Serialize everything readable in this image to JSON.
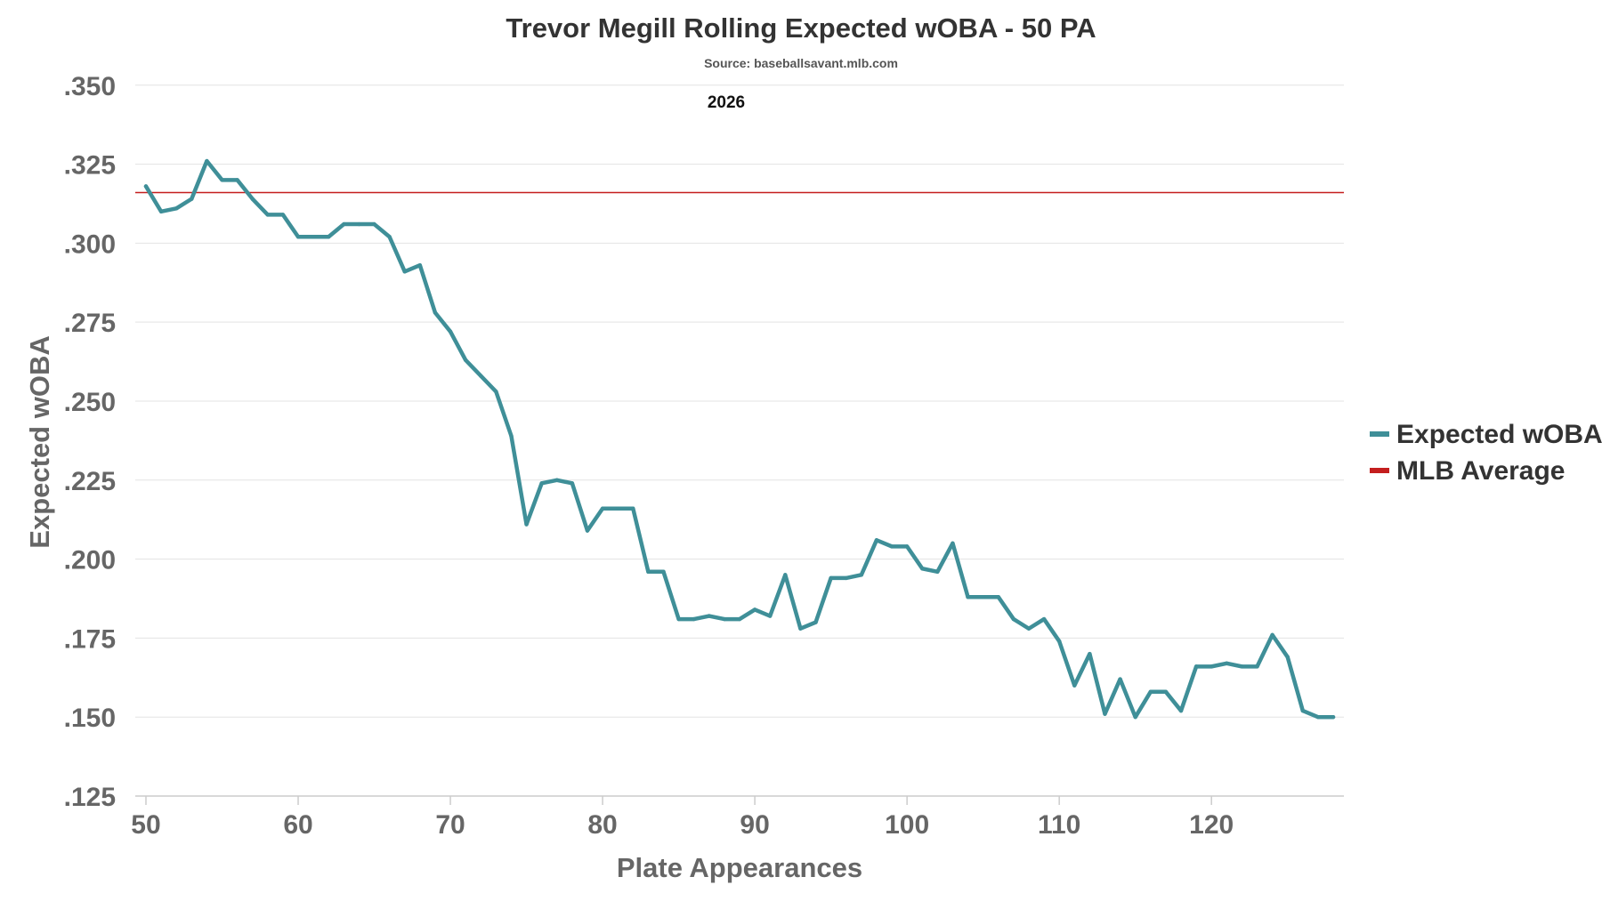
{
  "chart_data": {
    "type": "line",
    "title": "Trevor Megill Rolling Expected wOBA - 50 PA",
    "subtitle": "Source: baseballsavant.mlb.com",
    "annotation": "2026",
    "xlabel": "Plate Appearances",
    "ylabel": "Expected wOBA",
    "xlim": [
      49.3,
      128.7
    ],
    "ylim": [
      0.125,
      0.355
    ],
    "x_ticks": [
      50,
      60,
      70,
      80,
      90,
      100,
      110,
      120
    ],
    "y_ticks": [
      0.125,
      0.15,
      0.175,
      0.2,
      0.225,
      0.25,
      0.275,
      0.3,
      0.325,
      0.35
    ],
    "y_tick_labels": [
      ".125",
      ".150",
      ".175",
      ".200",
      ".225",
      ".250",
      ".275",
      ".300",
      ".325",
      ".350"
    ],
    "grid": true,
    "legend_position": "right",
    "series": [
      {
        "name": "Expected wOBA",
        "color": "#3f8f98",
        "x": [
          50,
          51,
          52,
          53,
          54,
          55,
          56,
          57,
          58,
          59,
          60,
          61,
          62,
          63,
          64,
          65,
          66,
          67,
          68,
          69,
          70,
          71,
          72,
          73,
          74,
          75,
          76,
          77,
          78,
          79,
          80,
          81,
          82,
          83,
          84,
          85,
          86,
          87,
          88,
          89,
          90,
          91,
          92,
          93,
          94,
          95,
          96,
          97,
          98,
          99,
          100,
          101,
          102,
          103,
          104,
          105,
          106,
          107,
          108,
          109,
          110,
          111,
          112,
          113,
          114,
          115,
          116,
          117,
          118,
          119,
          120,
          121,
          122,
          123,
          124,
          125,
          126,
          127,
          128
        ],
        "values": [
          0.318,
          0.31,
          0.311,
          0.314,
          0.326,
          0.32,
          0.32,
          0.314,
          0.309,
          0.309,
          0.302,
          0.302,
          0.302,
          0.306,
          0.306,
          0.306,
          0.302,
          0.291,
          0.293,
          0.278,
          0.272,
          0.263,
          0.258,
          0.253,
          0.239,
          0.211,
          0.224,
          0.225,
          0.224,
          0.209,
          0.216,
          0.216,
          0.216,
          0.196,
          0.196,
          0.181,
          0.181,
          0.182,
          0.181,
          0.181,
          0.184,
          0.182,
          0.195,
          0.178,
          0.18,
          0.194,
          0.194,
          0.195,
          0.206,
          0.204,
          0.204,
          0.197,
          0.196,
          0.205,
          0.188,
          0.188,
          0.188,
          0.181,
          0.178,
          0.181,
          0.174,
          0.16,
          0.17,
          0.151,
          0.162,
          0.15,
          0.158,
          0.158,
          0.152,
          0.166,
          0.166,
          0.167,
          0.166,
          0.166,
          0.176,
          0.169,
          0.152,
          0.15,
          0.15
        ]
      },
      {
        "name": "MLB Average",
        "color": "#c41e1e",
        "constant": 0.316
      }
    ]
  }
}
